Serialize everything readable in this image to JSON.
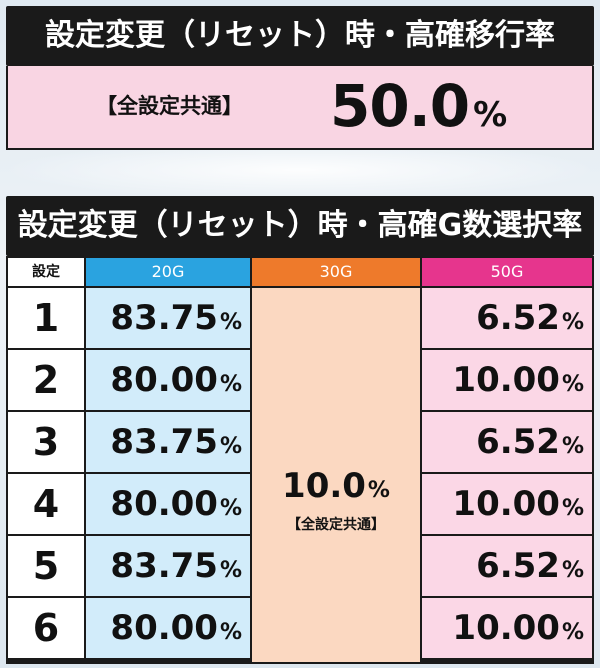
{
  "top": {
    "title": "設定変更（リセット）時・高確移行率",
    "label": "【全設定共通】",
    "value": "50.0",
    "pct": "%"
  },
  "table": {
    "title": "設定変更（リセット）時・高確G数選択率",
    "header": {
      "setting": "設定",
      "g20": "20G",
      "g30": "30G",
      "g50": "50G"
    },
    "rows": [
      {
        "setting": "1",
        "g20": "83.75",
        "g50": "6.52"
      },
      {
        "setting": "2",
        "g20": "80.00",
        "g50": "10.00"
      },
      {
        "setting": "3",
        "g20": "83.75",
        "g50": "6.52"
      },
      {
        "setting": "4",
        "g20": "80.00",
        "g50": "10.00"
      },
      {
        "setting": "5",
        "g20": "83.75",
        "g50": "6.52"
      },
      {
        "setting": "6",
        "g20": "80.00",
        "g50": "10.00"
      }
    ],
    "g30_common": {
      "value": "10.0",
      "label": "【全設定共通】"
    },
    "pct": "%"
  },
  "colors": {
    "header_bg": "#1a1a1a",
    "col20": "#2aa3e0",
    "col30": "#ee7a2b",
    "col50": "#e6358d",
    "cell20": "#d2ecfa",
    "cell30": "#fbd8c1",
    "cell50": "#fbd7e6",
    "rate_box": "#f9d5e3"
  }
}
